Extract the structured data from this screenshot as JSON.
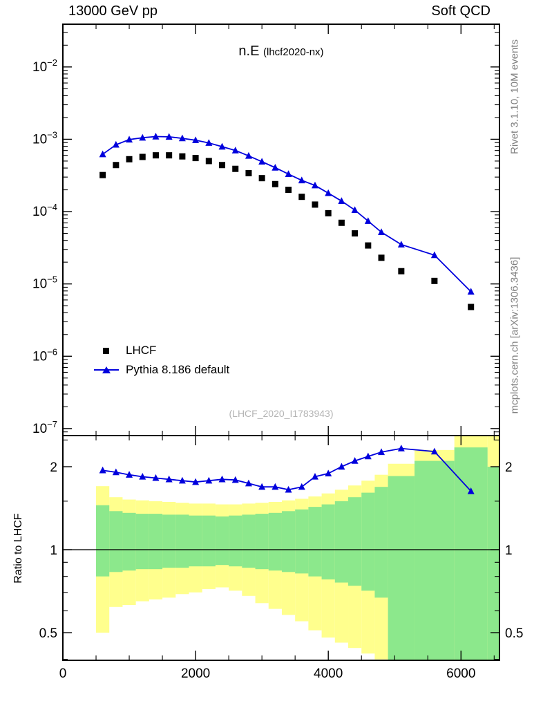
{
  "header": {
    "left": "13000 GeV pp",
    "right": "Soft QCD"
  },
  "title": {
    "main": "n.E",
    "sub": "(lhcf2020-nx)"
  },
  "watermark": "(LHCF_2020_I1783943)",
  "side_notes": {
    "top": "Rivet 3.1.10,  10M events",
    "bottom": "mcplots.cern.ch [arXiv:1306.3436]"
  },
  "legend": {
    "items": [
      {
        "label": "LHCF",
        "marker": "filled-square",
        "color": "#000000"
      },
      {
        "label": "Pythia 8.186 default",
        "marker": "triangle-on-line",
        "color": "#0000dd"
      }
    ]
  },
  "colors": {
    "pythia_blue": "#0000dd",
    "data_black": "#000000",
    "band_yellow": "#ffff8d",
    "band_green": "#8ce88c",
    "watermark_gray": "#b4b4b4",
    "side_gray": "#808080"
  },
  "axes": {
    "x": {
      "min": 0,
      "max": 6580,
      "major_ticks": [
        0,
        2000,
        4000,
        6000
      ],
      "labels": [
        "0",
        "2000",
        "4000",
        "6000"
      ],
      "minor_step": 500
    },
    "y_main": {
      "scale": "log",
      "min": 8e-08,
      "max": 0.039,
      "decade_labels": [
        -2,
        -3,
        -4,
        -5,
        -6,
        -7
      ]
    },
    "y_ratio": {
      "scale": "log",
      "min": 0.397,
      "max": 2.594,
      "tick_values": [
        0.5,
        1,
        2
      ],
      "tick_labels": [
        "0.5",
        "1",
        "2"
      ],
      "minor_ticks": [
        0.4,
        0.6,
        0.7,
        0.8,
        0.9,
        1.5,
        2.5
      ],
      "label": "Ratio to LHCF"
    }
  },
  "chart_data": {
    "type": "line",
    "title": "n.E (lhcf2020-nx)",
    "xlabel": "",
    "ylabel": "",
    "xlim": [
      0,
      6580
    ],
    "ylim_main": [
      8e-08,
      0.039
    ],
    "ylim_ratio": [
      0.397,
      2.594
    ],
    "x_values": [
      600,
      800,
      1000,
      1200,
      1400,
      1600,
      1800,
      2000,
      2200,
      2400,
      2600,
      2800,
      3000,
      3200,
      3400,
      3600,
      3800,
      4000,
      4200,
      4400,
      4600,
      4800,
      5100,
      5600,
      6150
    ],
    "series": [
      {
        "name": "LHCF",
        "marker": "filled-square",
        "color": "#000000",
        "y": [
          0.00032,
          0.00044,
          0.00053,
          0.00057,
          0.0006,
          0.0006,
          0.00058,
          0.00055,
          0.0005,
          0.00044,
          0.00039,
          0.00034,
          0.00029,
          0.00024,
          0.0002,
          0.00016,
          0.000125,
          9.5e-05,
          7e-05,
          5e-05,
          3.4e-05,
          2.3e-05,
          1.5e-05,
          1.1e-05,
          4.8e-06
        ]
      },
      {
        "name": "Pythia 8.186 default",
        "marker": "filled-triangle",
        "color": "#0000dd",
        "y": [
          0.00062,
          0.00084,
          0.00099,
          0.00105,
          0.00109,
          0.00108,
          0.00103,
          0.00097,
          0.00089,
          0.00079,
          0.0007,
          0.00059,
          0.00049,
          0.000405,
          0.00033,
          0.00027,
          0.00023,
          0.00018,
          0.00014,
          0.000105,
          7.4e-05,
          5.2e-05,
          3.5e-05,
          2.5e-05,
          7.8e-06
        ]
      }
    ],
    "ratio": {
      "name": "Pythia 8.186 default / LHCF",
      "color": "#0000dd",
      "y": [
        1.94,
        1.91,
        1.87,
        1.84,
        1.82,
        1.8,
        1.78,
        1.76,
        1.78,
        1.8,
        1.79,
        1.74,
        1.69,
        1.69,
        1.65,
        1.69,
        1.84,
        1.89,
        2.0,
        2.1,
        2.18,
        2.26,
        2.33,
        2.27,
        1.63
      ]
    },
    "bands": [
      {
        "x0": 500,
        "x1": 700,
        "yellow": [
          0.5,
          1.7
        ],
        "green": [
          0.8,
          1.45
        ]
      },
      {
        "x0": 700,
        "x1": 900,
        "yellow": [
          0.62,
          1.55
        ],
        "green": [
          0.83,
          1.38
        ]
      },
      {
        "x0": 900,
        "x1": 1100,
        "yellow": [
          0.63,
          1.52
        ],
        "green": [
          0.84,
          1.36
        ]
      },
      {
        "x0": 1100,
        "x1": 1300,
        "yellow": [
          0.65,
          1.51
        ],
        "green": [
          0.85,
          1.35
        ]
      },
      {
        "x0": 1300,
        "x1": 1500,
        "yellow": [
          0.66,
          1.5
        ],
        "green": [
          0.85,
          1.35
        ]
      },
      {
        "x0": 1500,
        "x1": 1700,
        "yellow": [
          0.67,
          1.49
        ],
        "green": [
          0.86,
          1.34
        ]
      },
      {
        "x0": 1700,
        "x1": 1900,
        "yellow": [
          0.69,
          1.48
        ],
        "green": [
          0.86,
          1.34
        ]
      },
      {
        "x0": 1900,
        "x1": 2100,
        "yellow": [
          0.7,
          1.47
        ],
        "green": [
          0.87,
          1.33
        ]
      },
      {
        "x0": 2100,
        "x1": 2300,
        "yellow": [
          0.72,
          1.47
        ],
        "green": [
          0.87,
          1.33
        ]
      },
      {
        "x0": 2300,
        "x1": 2500,
        "yellow": [
          0.73,
          1.46
        ],
        "green": [
          0.88,
          1.32
        ]
      },
      {
        "x0": 2500,
        "x1": 2700,
        "yellow": [
          0.71,
          1.46
        ],
        "green": [
          0.87,
          1.33
        ]
      },
      {
        "x0": 2700,
        "x1": 2900,
        "yellow": [
          0.68,
          1.47
        ],
        "green": [
          0.86,
          1.34
        ]
      },
      {
        "x0": 2900,
        "x1": 3100,
        "yellow": [
          0.64,
          1.48
        ],
        "green": [
          0.85,
          1.35
        ]
      },
      {
        "x0": 3100,
        "x1": 3300,
        "yellow": [
          0.61,
          1.49
        ],
        "green": [
          0.84,
          1.36
        ]
      },
      {
        "x0": 3300,
        "x1": 3500,
        "yellow": [
          0.58,
          1.51
        ],
        "green": [
          0.83,
          1.38
        ]
      },
      {
        "x0": 3500,
        "x1": 3700,
        "yellow": [
          0.55,
          1.53
        ],
        "green": [
          0.82,
          1.4
        ]
      },
      {
        "x0": 3700,
        "x1": 3900,
        "yellow": [
          0.51,
          1.56
        ],
        "green": [
          0.8,
          1.43
        ]
      },
      {
        "x0": 3900,
        "x1": 4100,
        "yellow": [
          0.48,
          1.6
        ],
        "green": [
          0.78,
          1.46
        ]
      },
      {
        "x0": 4100,
        "x1": 4300,
        "yellow": [
          0.46,
          1.65
        ],
        "green": [
          0.76,
          1.5
        ]
      },
      {
        "x0": 4300,
        "x1": 4500,
        "yellow": [
          0.44,
          1.71
        ],
        "green": [
          0.74,
          1.55
        ]
      },
      {
        "x0": 4500,
        "x1": 4700,
        "yellow": [
          0.42,
          1.78
        ],
        "green": [
          0.71,
          1.61
        ]
      },
      {
        "x0": 4700,
        "x1": 4900,
        "yellow": [
          0.4,
          1.87
        ],
        "green": [
          0.67,
          1.69
        ]
      },
      {
        "x0": 4900,
        "x1": 5300,
        "yellow": [
          0.39,
          2.05
        ],
        "green": [
          0.39,
          1.85
        ]
      },
      {
        "x0": 5300,
        "x1": 5900,
        "yellow": [
          0.39,
          2.3
        ],
        "green": [
          0.39,
          2.1
        ]
      },
      {
        "x0": 5900,
        "x1": 6400,
        "yellow": [
          0.39,
          2.6
        ],
        "green": [
          0.39,
          2.35
        ]
      },
      {
        "x0": 6400,
        "x1": 6580,
        "yellow": [
          0.39,
          2.6
        ],
        "green": [
          0.39,
          2.0
        ]
      }
    ]
  }
}
